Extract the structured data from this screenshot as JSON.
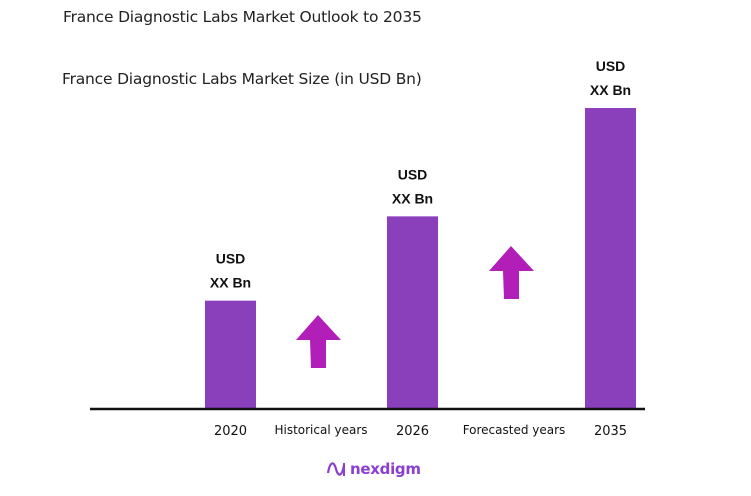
{
  "title": "France Diagnostic Labs Market Outlook to 2035",
  "chart_data": {
    "type": "bar",
    "title": "France Diagnostic Labs Market Size (in USD Bn)",
    "categories": [
      "2020",
      "2026",
      "2035"
    ],
    "values_relative_index": [
      36,
      64,
      100
    ],
    "data_labels": [
      [
        "USD",
        "XX Bn"
      ],
      [
        "USD",
        "XX Bn"
      ],
      [
        "USD",
        "XX Bn"
      ]
    ],
    "period_labels": [
      "Historical years",
      "Forecasted years"
    ],
    "growth_arrows": [
      "up",
      "up"
    ],
    "grid": false,
    "legend": "none",
    "colors": {
      "bar": "#8a40bb",
      "arrow": "#b11fb8",
      "axis": "#111111"
    }
  },
  "footer": {
    "logo_text": "nexdigm",
    "logo_color": "#8a3fd0"
  }
}
